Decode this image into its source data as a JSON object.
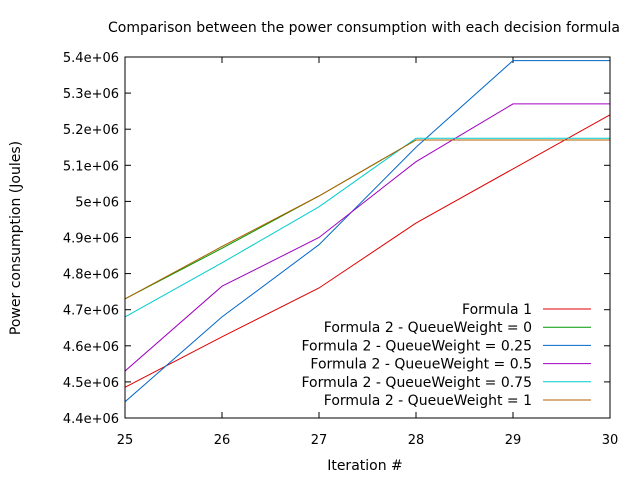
{
  "chart_data": {
    "type": "line",
    "title": "Comparison between the power consumption with each decision formula",
    "xlabel": "Iteration #",
    "ylabel": "Power consumption (Joules)",
    "xlim": [
      25,
      30
    ],
    "ylim": [
      4400000,
      5400000
    ],
    "x_ticks": [
      "25",
      "26",
      "27",
      "28",
      "29",
      "30"
    ],
    "y_ticks": [
      "4.4e+06",
      "4.5e+06",
      "4.6e+06",
      "4.7e+06",
      "4.8e+06",
      "4.9e+06",
      "5e+06",
      "5.1e+06",
      "5.2e+06",
      "5.3e+06",
      "5.4e+06"
    ],
    "grid": false,
    "legend_position": "bottom-right",
    "x": [
      25,
      26,
      27,
      28,
      29,
      30
    ],
    "series": [
      {
        "name": "Formula 1",
        "color": "#e00000",
        "values": [
          4485000,
          4625000,
          4760000,
          4940000,
          5090000,
          5240000
        ]
      },
      {
        "name": "Formula 2 - QueueWeight = 0",
        "color": "#009900",
        "values": [
          4730000,
          4870000,
          5015000,
          5170000,
          5170000,
          5170000
        ]
      },
      {
        "name": "Formula 2 - QueueWeight = 0.25",
        "color": "#0066cc",
        "values": [
          4445000,
          4680000,
          4880000,
          5150000,
          5390000,
          5390000
        ]
      },
      {
        "name": "Formula 2 - QueueWeight = 0.5",
        "color": "#a000c0",
        "values": [
          4530000,
          4765000,
          4900000,
          5110000,
          5270000,
          5270000
        ]
      },
      {
        "name": "Formula 2 - QueueWeight = 0.75",
        "color": "#00cccc",
        "values": [
          4680000,
          4830000,
          4985000,
          5175000,
          5175000,
          5175000
        ]
      },
      {
        "name": "Formula 2 - QueueWeight = 1",
        "color": "#b06000",
        "values": [
          4730000,
          4875000,
          5015000,
          5170000,
          5170000,
          5170000
        ]
      }
    ]
  }
}
